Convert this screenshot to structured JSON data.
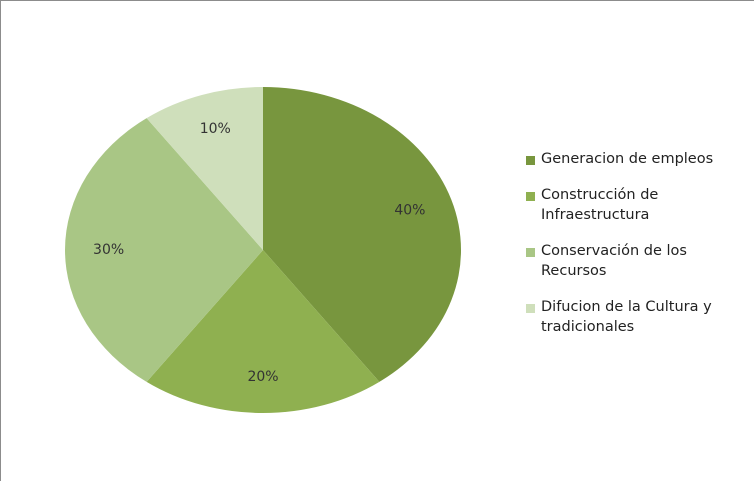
{
  "chart_data": {
    "type": "pie",
    "title": "",
    "slices": [
      {
        "label": "Generacion de empleos",
        "value": 40,
        "display": "40%",
        "color": "#78963e"
      },
      {
        "label": "Construcción de Infraestructura",
        "value": 20,
        "display": "20%",
        "color": "#8fb050"
      },
      {
        "label": "Conservación de los Recursos",
        "value": 30,
        "display": "30%",
        "color": "#a9c685"
      },
      {
        "label": "Difucion de la Cultura y tradicionales",
        "value": 10,
        "display": "10%",
        "color": "#cfdfbb"
      }
    ],
    "legend": {
      "position": "right",
      "entries": [
        [
          "Generacion de empleos"
        ],
        [
          "Construcción de",
          "Infraestructura"
        ],
        [
          "Conservación de los",
          "Recursos"
        ],
        [
          "Difucion de la Cultura y",
          "tradicionales"
        ]
      ]
    }
  }
}
